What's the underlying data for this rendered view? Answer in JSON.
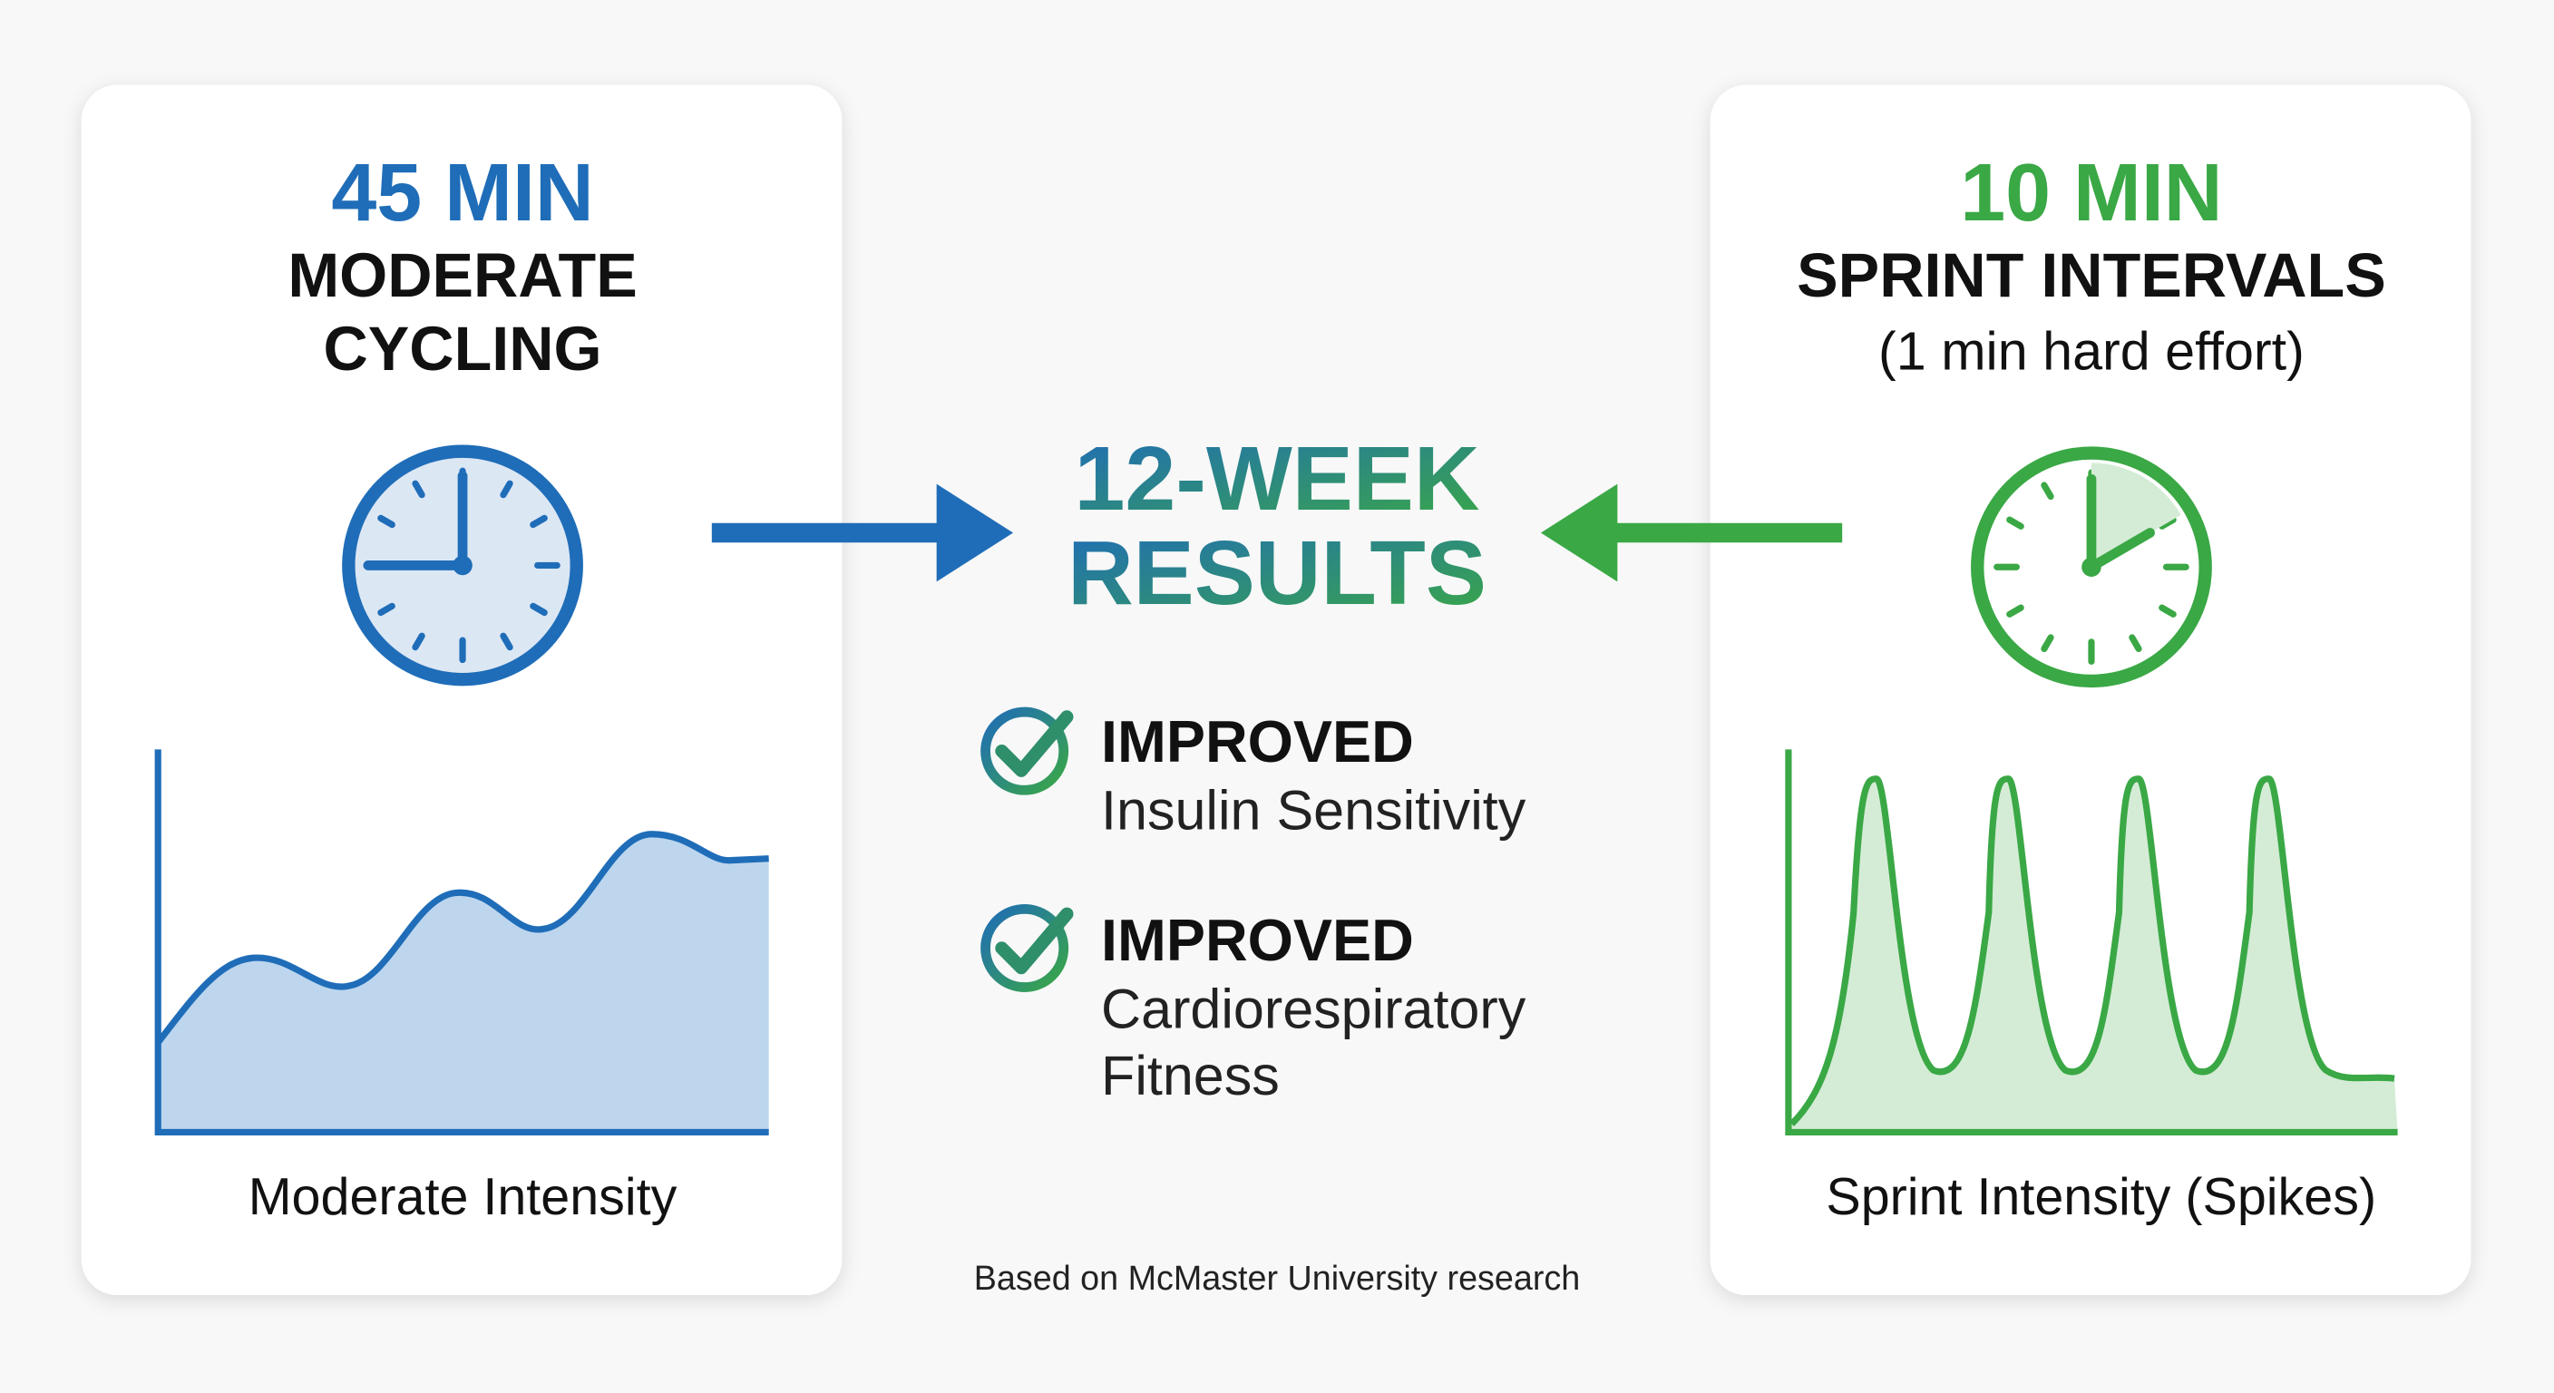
{
  "left_card": {
    "duration": "45 MIN",
    "title_lines": [
      "MODERATE",
      "CYCLING"
    ],
    "caption": "Moderate Intensity"
  },
  "center": {
    "title_lines": [
      "12-WEEK",
      "RESULTS"
    ],
    "results": [
      {
        "heading": "IMPROVED",
        "detail_lines": [
          "Insulin Sensitivity"
        ]
      },
      {
        "heading": "IMPROVED",
        "detail_lines": [
          "Cardiorespiratory",
          "Fitness"
        ]
      }
    ],
    "footnote": "Based on McMaster University research"
  },
  "right_card": {
    "duration": "10 MIN",
    "title": "SPRINT INTERVALS",
    "note": "(1 min hard effort)",
    "caption": "Sprint Intensity (Spikes)"
  }
}
